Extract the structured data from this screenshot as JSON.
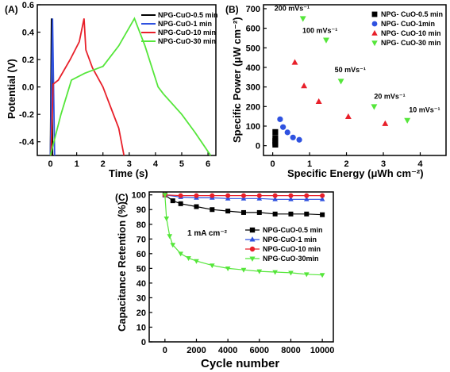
{
  "chart_data": [
    {
      "panel": "(A)",
      "type": "line",
      "xlabel": "Time (s)",
      "ylabel": "Potential (V)",
      "xlim": [
        -0.5,
        6.3
      ],
      "ylim": [
        -0.5,
        0.6
      ],
      "xticks": [
        "0",
        "1",
        "2",
        "3",
        "4",
        "5",
        "6"
      ],
      "yticks": [
        "-0.4",
        "-0.2",
        "0.0",
        "0.2",
        "0.4",
        "0.6"
      ],
      "legend_position": "top-right",
      "series": [
        {
          "name": "NPG-CuO-0.5 min",
          "color": "#000000",
          "points": [
            [
              0.0,
              -0.5
            ],
            [
              0.04,
              0.5
            ],
            [
              0.08,
              -0.5
            ]
          ]
        },
        {
          "name": "NPG-CuO-1 min",
          "color": "#2f52e0",
          "points": [
            [
              0.0,
              -0.5
            ],
            [
              0.08,
              0.5
            ],
            [
              0.16,
              -0.5
            ]
          ]
        },
        {
          "name": "NPG-CuO-10 min",
          "color": "#e8202a",
          "points": [
            [
              0.02,
              -0.5
            ],
            [
              0.1,
              0.02
            ],
            [
              0.3,
              0.05
            ],
            [
              0.75,
              0.2
            ],
            [
              1.1,
              0.33
            ],
            [
              1.28,
              0.5
            ],
            [
              1.35,
              0.27
            ],
            [
              1.6,
              0.14
            ],
            [
              2.0,
              0.0
            ],
            [
              2.3,
              -0.15
            ],
            [
              2.6,
              -0.3
            ],
            [
              2.8,
              -0.5
            ]
          ]
        },
        {
          "name": "NPG-CuO-30 min",
          "color": "#55e63a",
          "points": [
            [
              0.0,
              -0.5
            ],
            [
              0.4,
              -0.2
            ],
            [
              0.8,
              0.05
            ],
            [
              1.3,
              0.1
            ],
            [
              2.0,
              0.15
            ],
            [
              2.6,
              0.3
            ],
            [
              3.2,
              0.5
            ],
            [
              3.6,
              0.3
            ],
            [
              4.1,
              0.0
            ],
            [
              4.3,
              -0.05
            ],
            [
              5.0,
              -0.2
            ],
            [
              5.5,
              -0.33
            ],
            [
              6.1,
              -0.5
            ]
          ]
        }
      ]
    },
    {
      "panel": "(B)",
      "type": "scatter",
      "xlabel": "Specific Energy (μWh cm⁻²)",
      "ylabel": "Specific Power (μW cm⁻²)",
      "xlim": [
        -0.25,
        4.7
      ],
      "ylim": [
        -50,
        720
      ],
      "xticks": [
        "0",
        "1",
        "2",
        "3",
        "4"
      ],
      "yticks": [
        "0",
        "100",
        "200",
        "300",
        "400",
        "500",
        "600",
        "700"
      ],
      "legend_position": "top-right",
      "annotations": [
        "200 mVs⁻¹",
        "100 mVs⁻¹",
        "50 mVs⁻¹",
        "20 mVs⁻¹",
        "10 mVs⁻¹"
      ],
      "series": [
        {
          "name": "NPG- CuO-0.5 min",
          "color": "#000000",
          "marker": "square",
          "points": [
            [
              0.07,
              70
            ],
            [
              0.07,
              40
            ],
            [
              0.07,
              25
            ],
            [
              0.07,
              15
            ],
            [
              0.07,
              5
            ]
          ]
        },
        {
          "name": "NPG- CuO-1min",
          "color": "#2f52e0",
          "marker": "circle",
          "points": [
            [
              0.2,
              135
            ],
            [
              0.28,
              95
            ],
            [
              0.4,
              68
            ],
            [
              0.55,
              42
            ],
            [
              0.72,
              30
            ]
          ]
        },
        {
          "name": "NPG- CuO-10 min",
          "color": "#e8202a",
          "marker": "triangle-up",
          "points": [
            [
              0.6,
              425
            ],
            [
              0.85,
              305
            ],
            [
              1.25,
              225
            ],
            [
              2.05,
              148
            ],
            [
              3.05,
              112
            ]
          ]
        },
        {
          "name": "NPG- CuO-30 min",
          "color": "#55e63a",
          "marker": "triangle-down",
          "points": [
            [
              0.82,
              650
            ],
            [
              1.45,
              540
            ],
            [
              1.85,
              330
            ],
            [
              2.75,
              200
            ],
            [
              3.65,
              130
            ]
          ]
        }
      ]
    },
    {
      "panel": "(C)",
      "type": "line",
      "xlabel": "Cycle number",
      "ylabel": "Capacitance Retention (%)",
      "xlim": [
        -1000,
        10700
      ],
      "ylim": [
        0,
        102
      ],
      "xticks": [
        "0",
        "2000",
        "4000",
        "6000",
        "8000",
        "10000"
      ],
      "yticks": [
        "0",
        "10",
        "20",
        "30",
        "40",
        "50",
        "60",
        "70",
        "80",
        "90",
        "100"
      ],
      "annotation": "1 mA cm⁻²",
      "legend_position": "center-right",
      "series": [
        {
          "name": "NPG-CuO-0.5 min",
          "color": "#000000",
          "marker": "square",
          "x": [
            0,
            500,
            1000,
            2000,
            3000,
            4000,
            5000,
            6000,
            7000,
            8000,
            9000,
            10000
          ],
          "values": [
            100,
            96,
            94,
            92,
            90,
            89,
            88,
            88,
            87,
            87,
            87,
            86.5
          ]
        },
        {
          "name": "NPG-CuO-1 min",
          "color": "#2f52e0",
          "marker": "triangle-up",
          "x": [
            0,
            1000,
            2000,
            3000,
            4000,
            5000,
            6000,
            7000,
            8000,
            9000,
            10000
          ],
          "values": [
            100,
            98.5,
            98,
            98,
            97.5,
            97.5,
            97.5,
            97,
            97,
            97,
            97
          ]
        },
        {
          "name": "NPG-CuO-10 min",
          "color": "#e8202a",
          "marker": "circle",
          "x": [
            0,
            1000,
            2000,
            3000,
            4000,
            5000,
            6000,
            7000,
            8000,
            9000,
            10000
          ],
          "values": [
            100,
            99.5,
            99.5,
            99.5,
            99.5,
            99.5,
            99.5,
            99.5,
            99.5,
            99.5,
            99.5
          ]
        },
        {
          "name": "NPG-CuO-30min",
          "color": "#55e63a",
          "marker": "triangle-down",
          "x": [
            0,
            100,
            300,
            500,
            1000,
            1500,
            2000,
            3000,
            4000,
            5000,
            6000,
            7000,
            8000,
            9000,
            10000
          ],
          "values": [
            100,
            84,
            72,
            66,
            60,
            57,
            55,
            52,
            50,
            49,
            48,
            47.5,
            47,
            46,
            45.5
          ]
        }
      ]
    }
  ]
}
